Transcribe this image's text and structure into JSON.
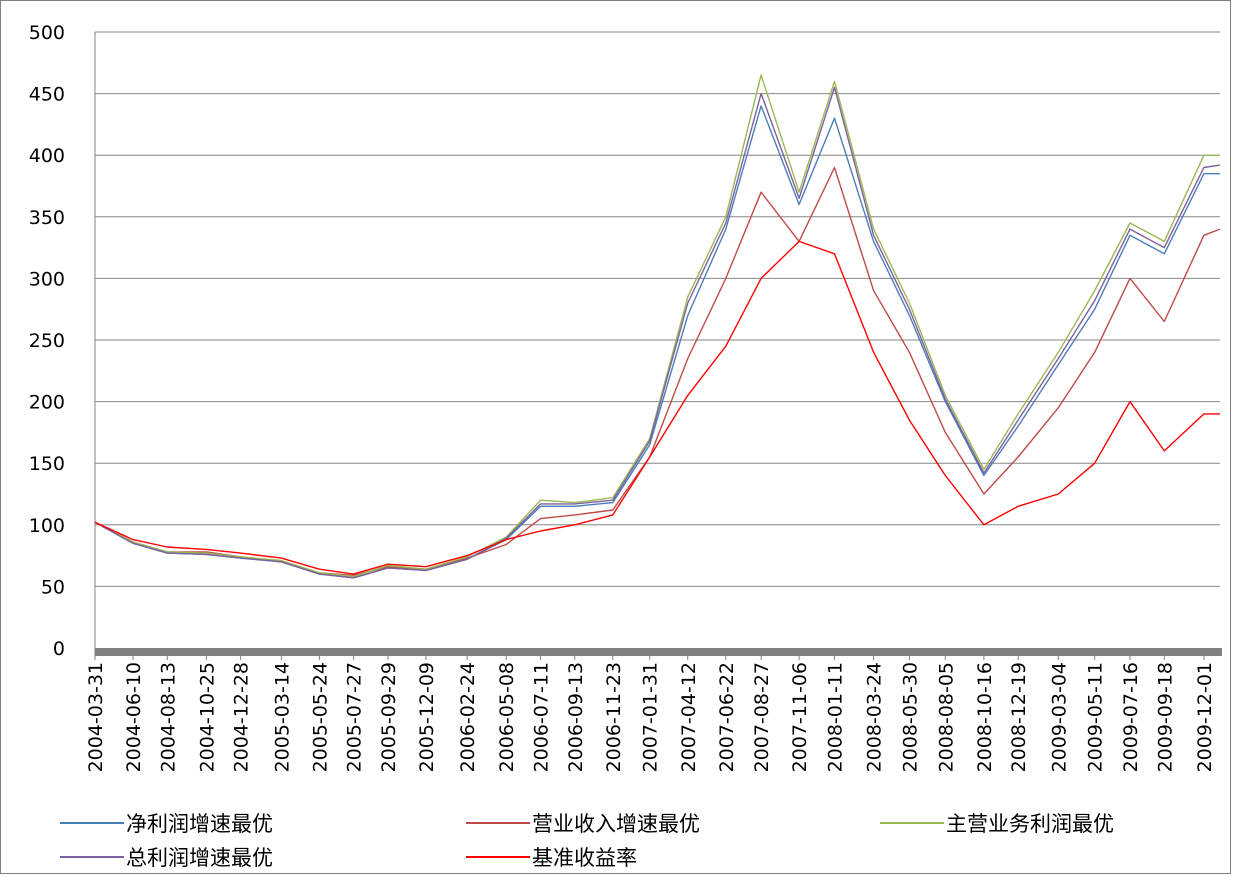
{
  "chart_data": {
    "type": "line",
    "title": "",
    "xlabel": "",
    "ylabel": "",
    "ylim": [
      0,
      500
    ],
    "yticks": [
      0,
      50,
      100,
      150,
      200,
      250,
      300,
      350,
      400,
      450,
      500
    ],
    "x_tick_labels": [
      "2004-03-31",
      "2004-06-10",
      "2004-08-13",
      "2004-10-25",
      "2004-12-28",
      "2005-03-14",
      "2005-05-24",
      "2005-07-27",
      "2005-09-29",
      "2005-12-09",
      "2006-02-24",
      "2006-05-08",
      "2006-07-11",
      "2006-09-13",
      "2006-11-23",
      "2007-01-31",
      "2007-04-12",
      "2007-06-22",
      "2007-08-27",
      "2007-11-06",
      "2008-01-11",
      "2008-03-24",
      "2008-05-30",
      "2008-08-05",
      "2008-10-16",
      "2008-12-19",
      "2009-03-04",
      "2009-05-11",
      "2009-07-16",
      "2009-09-18",
      "2009-12-01"
    ],
    "grid": "horizontal",
    "legend_position": "bottom",
    "x": [
      "2004-03-31",
      "2004-06-10",
      "2004-08-13",
      "2004-10-25",
      "2004-12-28",
      "2005-03-14",
      "2005-05-24",
      "2005-07-27",
      "2005-09-29",
      "2005-12-09",
      "2006-02-24",
      "2006-05-08",
      "2006-07-11",
      "2006-09-13",
      "2006-11-23",
      "2007-01-31",
      "2007-04-12",
      "2007-06-22",
      "2007-08-27",
      "2007-11-06",
      "2008-01-11",
      "2008-03-24",
      "2008-05-30",
      "2008-08-05",
      "2008-10-16",
      "2008-12-19",
      "2009-03-04",
      "2009-05-11",
      "2009-07-16",
      "2009-09-18",
      "2009-12-01",
      "2009-12-31"
    ],
    "series": [
      {
        "name": "净利润增速最优",
        "color": "#4a7ebb",
        "values": [
          102,
          85,
          77,
          76,
          73,
          70,
          60,
          57,
          65,
          63,
          72,
          88,
          115,
          115,
          118,
          165,
          270,
          340,
          440,
          360,
          430,
          330,
          270,
          200,
          140,
          180,
          230,
          275,
          335,
          320,
          385,
          385
        ]
      },
      {
        "name": "营业收入增速最优",
        "color": "#be4b48",
        "values": [
          102,
          86,
          78,
          78,
          74,
          70,
          61,
          59,
          66,
          64,
          73,
          84,
          105,
          108,
          112,
          155,
          235,
          300,
          370,
          330,
          390,
          290,
          240,
          175,
          125,
          155,
          195,
          240,
          300,
          265,
          335,
          340
        ]
      },
      {
        "name": "主营业务利润最优",
        "color": "#98b954",
        "values": [
          102,
          86,
          78,
          77,
          74,
          71,
          61,
          58,
          67,
          64,
          74,
          90,
          120,
          118,
          122,
          170,
          285,
          350,
          465,
          370,
          460,
          340,
          280,
          205,
          145,
          190,
          240,
          290,
          345,
          330,
          400,
          400
        ]
      },
      {
        "name": "总利润增速最优",
        "color": "#7d60a0",
        "values": [
          102,
          85,
          77,
          76,
          73,
          70,
          60,
          57,
          65,
          63,
          72,
          89,
          117,
          117,
          120,
          168,
          280,
          345,
          450,
          365,
          455,
          335,
          275,
          202,
          142,
          185,
          235,
          282,
          340,
          325,
          390,
          392
        ]
      },
      {
        "name": "基准收益率",
        "color": "#ff0000",
        "values": [
          102,
          88,
          82,
          80,
          77,
          73,
          64,
          60,
          68,
          66,
          75,
          88,
          95,
          100,
          108,
          155,
          205,
          245,
          300,
          330,
          320,
          240,
          185,
          140,
          100,
          115,
          125,
          150,
          200,
          160,
          190,
          190
        ]
      }
    ]
  }
}
